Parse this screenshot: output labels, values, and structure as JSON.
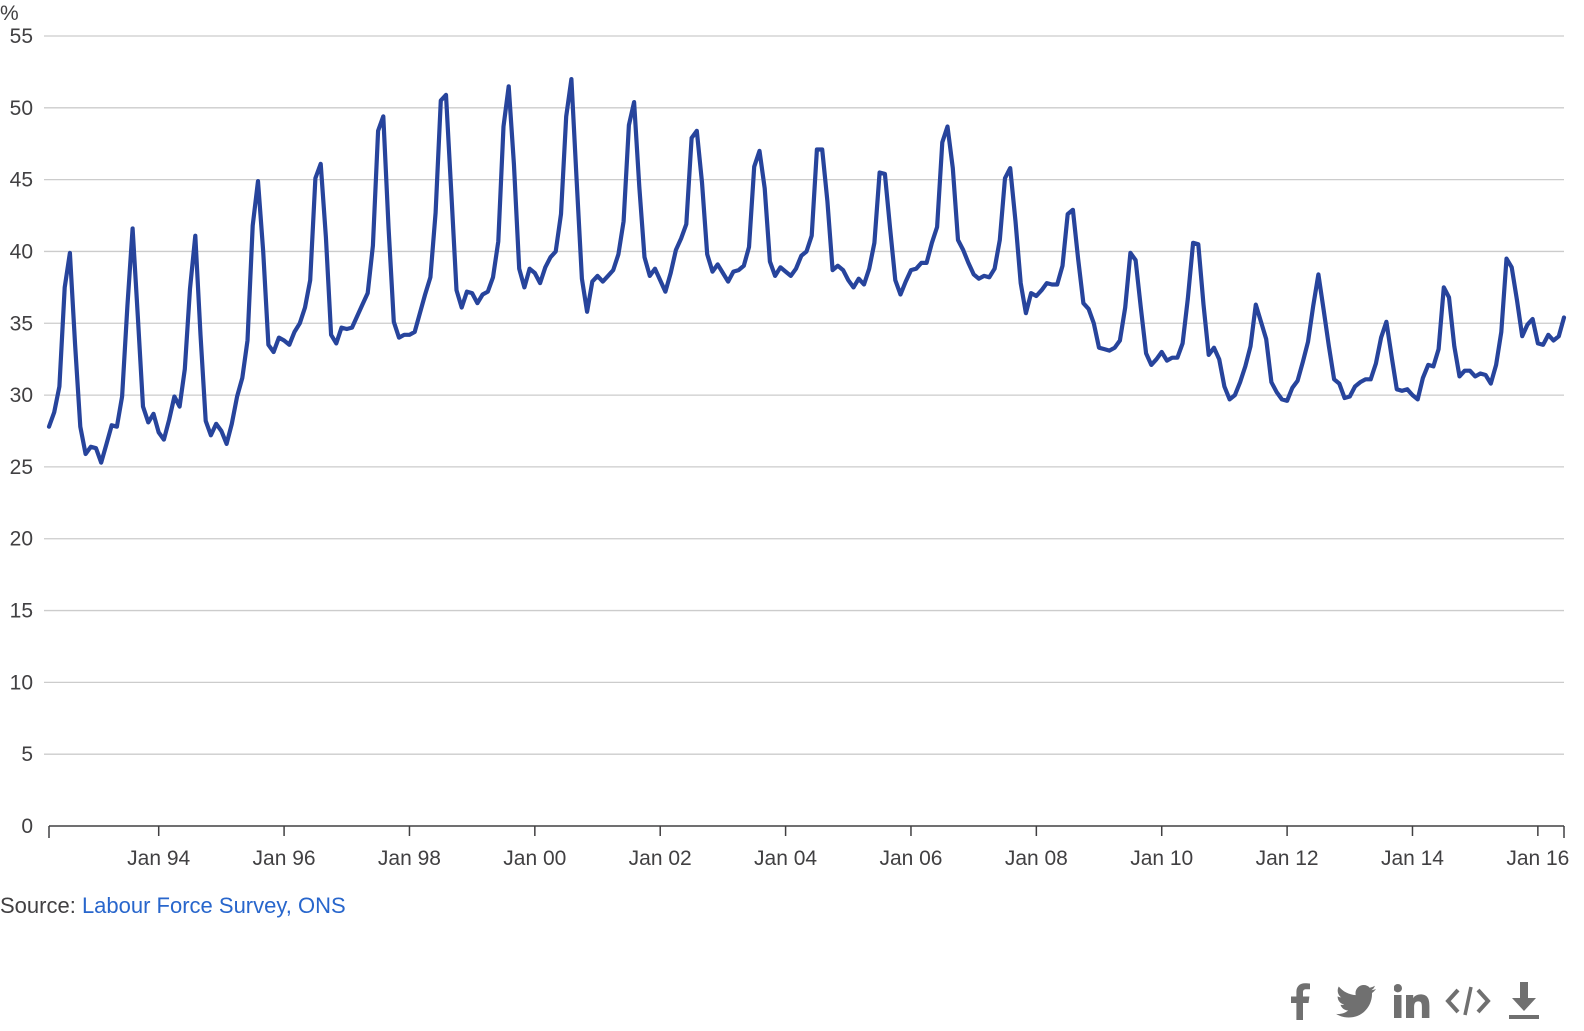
{
  "chart_data": {
    "type": "line",
    "unit_label": "%",
    "ylim": [
      0,
      55
    ],
    "yticks": [
      "0",
      "5",
      "10",
      "15",
      "20",
      "25",
      "30",
      "35",
      "40",
      "45",
      "50",
      "55"
    ],
    "xlim": [
      1992.25,
      2016.417
    ],
    "xticks": [
      {
        "label": "Jan 94",
        "x": 1994.0
      },
      {
        "label": "Jan 96",
        "x": 1996.0
      },
      {
        "label": "Jan 98",
        "x": 1998.0
      },
      {
        "label": "Jan 00",
        "x": 2000.0
      },
      {
        "label": "Jan 02",
        "x": 2002.0
      },
      {
        "label": "Jan 04",
        "x": 2004.0
      },
      {
        "label": "Jan 06",
        "x": 2006.0
      },
      {
        "label": "Jan 08",
        "x": 2008.0
      },
      {
        "label": "Jan 10",
        "x": 2010.0
      },
      {
        "label": "Jan 12",
        "x": 2012.0
      },
      {
        "label": "Jan 14",
        "x": 2014.0
      },
      {
        "label": "Jan 16",
        "x": 2016.0
      }
    ],
    "grid": true,
    "color": "#27449c",
    "series": [
      {
        "name": "",
        "x_start": 1992.25,
        "x_step": 0.0833333,
        "values": [
          27.8,
          28.8,
          30.6,
          37.5,
          39.9,
          33.5,
          27.8,
          25.9,
          26.4,
          26.3,
          25.3,
          26.6,
          27.9,
          27.8,
          29.9,
          36.2,
          41.6,
          35.5,
          29.2,
          28.1,
          28.7,
          27.4,
          26.9,
          28.3,
          29.9,
          29.2,
          31.8,
          37.4,
          41.1,
          34.2,
          28.2,
          27.2,
          28.0,
          27.5,
          26.6,
          28.0,
          29.9,
          31.2,
          33.8,
          41.8,
          44.9,
          40.0,
          33.5,
          33.0,
          34.0,
          33.8,
          33.5,
          34.4,
          35.0,
          36.1,
          38.0,
          45.1,
          46.1,
          41.0,
          34.2,
          33.6,
          34.7,
          34.6,
          34.7,
          35.5,
          36.3,
          37.1,
          40.4,
          48.4,
          49.4,
          41.6,
          35.1,
          34.0,
          34.2,
          34.2,
          34.4,
          35.7,
          37.0,
          38.2,
          42.7,
          50.5,
          50.9,
          44.1,
          37.3,
          36.1,
          37.2,
          37.1,
          36.4,
          37.0,
          37.2,
          38.2,
          40.7,
          48.7,
          51.5,
          46.1,
          38.8,
          37.5,
          38.8,
          38.5,
          37.8,
          38.9,
          39.6,
          40.0,
          42.6,
          49.4,
          52.0,
          45.0,
          38.1,
          35.8,
          37.9,
          38.3,
          37.9,
          38.3,
          38.7,
          39.8,
          42.1,
          48.8,
          50.4,
          44.5,
          39.6,
          38.3,
          38.8,
          38.0,
          37.2,
          38.5,
          40.1,
          40.9,
          41.9,
          47.9,
          48.4,
          44.8,
          39.8,
          38.6,
          39.1,
          38.5,
          37.9,
          38.6,
          38.7,
          39.0,
          40.3,
          45.9,
          47.0,
          44.4,
          39.3,
          38.3,
          38.9,
          38.6,
          38.3,
          38.8,
          39.7,
          40.0,
          41.1,
          47.1,
          47.1,
          43.5,
          38.7,
          39.0,
          38.7,
          38.0,
          37.5,
          38.1,
          37.7,
          38.8,
          40.6,
          45.5,
          45.4,
          41.6,
          38.0,
          37.0,
          37.9,
          38.7,
          38.8,
          39.2,
          39.2,
          40.6,
          41.7,
          47.6,
          48.7,
          45.8,
          40.8,
          40.1,
          39.2,
          38.4,
          38.1,
          38.3,
          38.2,
          38.8,
          40.8,
          45.1,
          45.8,
          42.1,
          37.8,
          35.7,
          37.1,
          36.9,
          37.3,
          37.8,
          37.7,
          37.7,
          39.0,
          42.6,
          42.9,
          39.5,
          36.4,
          36.0,
          35.0,
          33.3,
          33.2,
          33.1,
          33.3,
          33.8,
          36.1,
          39.9,
          39.4,
          36.1,
          32.9,
          32.1,
          32.5,
          33.0,
          32.4,
          32.6,
          32.6,
          33.6,
          36.7,
          40.6,
          40.5,
          36.3,
          32.8,
          33.3,
          32.5,
          30.6,
          29.7,
          30.0,
          30.9,
          32.0,
          33.4,
          36.3,
          35.1,
          33.9,
          30.9,
          30.2,
          29.7,
          29.6,
          30.5,
          31.0,
          32.3,
          33.7,
          36.2,
          38.4,
          35.9,
          33.4,
          31.1,
          30.8,
          29.8,
          29.9,
          30.6,
          30.9,
          31.1,
          31.1,
          32.2,
          34.0,
          35.1,
          32.7,
          30.4,
          30.3,
          30.4,
          30.0,
          29.7,
          31.2,
          32.1,
          32.0,
          33.2,
          37.5,
          36.8,
          33.4,
          31.3,
          31.7,
          31.7,
          31.3,
          31.5,
          31.4,
          30.8,
          32.1,
          34.4,
          39.5,
          38.9,
          36.6,
          34.1,
          34.9,
          35.3,
          33.6,
          33.5,
          34.2,
          33.8,
          34.1,
          35.4
        ]
      }
    ],
    "source_prefix": "Source: ",
    "source_link": "Labour Force Survey, ONS"
  },
  "share": {
    "icons": [
      "facebook-icon",
      "twitter-icon",
      "linkedin-icon",
      "embed-icon",
      "download-icon"
    ],
    "icon_color": "#707070"
  }
}
